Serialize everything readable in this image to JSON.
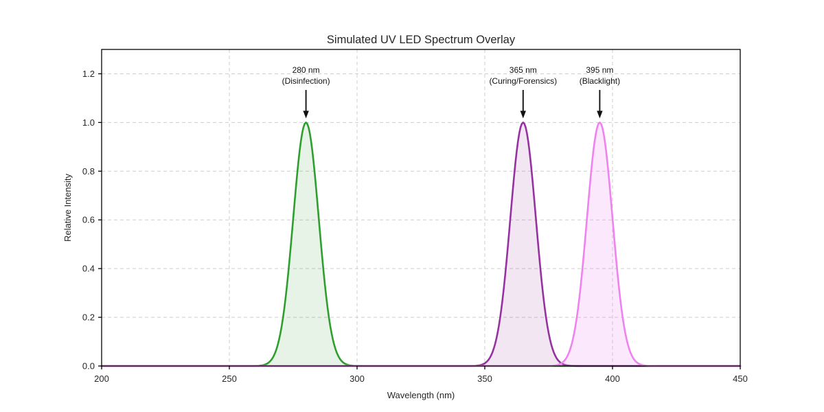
{
  "figure": {
    "title": "Simulated UV LED Spectrum Overlay"
  },
  "chart_data": {
    "type": "area",
    "title": "Simulated UV LED Spectrum Overlay",
    "xlabel": "Wavelength (nm)",
    "ylabel": "Relative Intensity",
    "xlim": [
      200,
      450
    ],
    "ylim": [
      0,
      1.3
    ],
    "xticks": [
      200,
      250,
      300,
      350,
      400,
      450
    ],
    "yticks": [
      0.0,
      0.2,
      0.4,
      0.6,
      0.8,
      1.0,
      1.2
    ],
    "grid": true,
    "grid_style": "dashed",
    "curve_model": "gaussian",
    "series": [
      {
        "name": "280 nm (Disinfection)",
        "peak_nm": 280,
        "sigma_nm": 5,
        "amplitude": 1.0,
        "line_color": "#2e9e2e",
        "fill_color": "rgba(46,158,46,0.12)"
      },
      {
        "name": "365 nm (Curing/Forensics)",
        "peak_nm": 365,
        "sigma_nm": 5,
        "amplitude": 1.0,
        "line_color": "#9632a0",
        "fill_color": "rgba(150,50,160,0.12)"
      },
      {
        "name": "395 nm (Blacklight)",
        "peak_nm": 395,
        "sigma_nm": 5,
        "amplitude": 1.0,
        "line_color": "#ee82ee",
        "fill_color": "rgba(238,130,238,0.18)"
      }
    ],
    "annotations": [
      {
        "lines": [
          "280 nm",
          "(Disinfection)"
        ],
        "x_nm": 280,
        "arrow_to_y": 1.0
      },
      {
        "lines": [
          "365 nm",
          "(Curing/Forensics)"
        ],
        "x_nm": 365,
        "arrow_to_y": 1.0
      },
      {
        "lines": [
          "395 nm",
          "(Blacklight)"
        ],
        "x_nm": 395,
        "arrow_to_y": 1.0
      }
    ],
    "colors": {
      "text": "#262626",
      "annotation": "#111111",
      "grid": "#cdcdcd",
      "spine": "#000000",
      "background": "#ffffff"
    }
  }
}
